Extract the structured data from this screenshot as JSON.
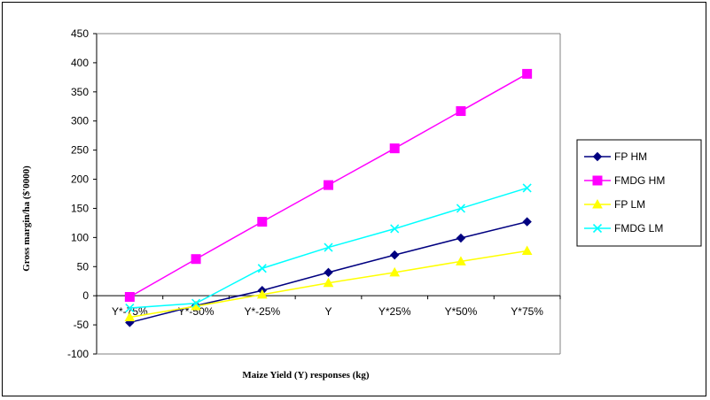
{
  "chart_data": {
    "type": "line",
    "title": "",
    "xlabel": "Maize Yield (Y) responses (kg)",
    "ylabel": "Gross margin/ha ($'0000)",
    "categories": [
      "Y*-75%",
      "Y*-50%",
      "Y*-25%",
      "Y",
      "Y*25%",
      "Y*50%",
      "Y*75%"
    ],
    "ylim": [
      -100,
      450
    ],
    "yticks": [
      -100,
      -50,
      0,
      50,
      100,
      150,
      200,
      250,
      300,
      350,
      400,
      450
    ],
    "grid": false,
    "legend_position": "right",
    "series": [
      {
        "name": "FP HM",
        "color": "#000080",
        "marker": "diamond",
        "values": [
          -46,
          -17,
          9,
          40,
          70,
          99,
          127
        ]
      },
      {
        "name": "FMDG HM",
        "color": "#FF00FF",
        "marker": "square",
        "values": [
          -2,
          63,
          127,
          190,
          253,
          317,
          381
        ]
      },
      {
        "name": "FP LM",
        "color": "#FFFF00",
        "marker": "triangle",
        "values": [
          -37,
          -18,
          2,
          22,
          40,
          59,
          77
        ]
      },
      {
        "name": "FMDG LM",
        "color": "#00FFFF",
        "marker": "x",
        "values": [
          -21,
          -13,
          47,
          83,
          115,
          150,
          185
        ]
      }
    ]
  }
}
